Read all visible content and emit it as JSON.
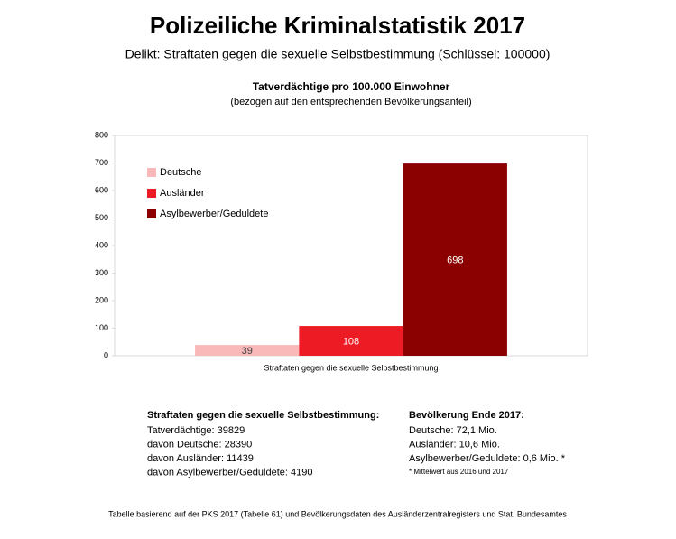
{
  "title": "Polizeiliche Kriminalstatistik 2017",
  "subtitle": "Delikt: Straftaten gegen die sexuelle Selbstbestimmung (Schlüssel: 100000)",
  "chart_data": {
    "type": "bar",
    "title": "Tatverdächtige pro 100.000 Einwohner",
    "subtitle": "(bezogen auf den entsprechenden Bevölkerungsanteil)",
    "categories": [
      "Straftaten gegen die sexuelle Selbstbestimmung"
    ],
    "series": [
      {
        "name": "Deutsche",
        "color": "#f9b9b9",
        "values": [
          39
        ]
      },
      {
        "name": "Ausländer",
        "color": "#ed1c24",
        "values": [
          108
        ]
      },
      {
        "name": "Asylbewerber/Geduldete",
        "color": "#8b0000",
        "values": [
          698
        ]
      }
    ],
    "ylim": [
      0,
      800
    ],
    "yticks": [
      0,
      100,
      200,
      300,
      400,
      500,
      600,
      700,
      800
    ],
    "legend": "upper left"
  },
  "notes": {
    "left": {
      "heading": "Straftaten gegen die sexuelle Selbstbestimmung:",
      "lines": [
        "Tatverdächtige: 39829",
        "davon Deutsche: 28390",
        "davon Ausländer: 11439",
        "davon Asylbewerber/Geduldete: 4190"
      ]
    },
    "right": {
      "heading": "Bevölkerung Ende 2017:",
      "lines": [
        "Deutsche: 72,1 Mio.",
        "Ausländer: 10,6 Mio.",
        "Asylbewerber/Geduldete: 0,6 Mio. *"
      ],
      "footnote": "* Mittelwert aus 2016 und 2017"
    }
  },
  "source": "Tabelle basierend auf der PKS 2017 (Tabelle 61) und Bevölkerungsdaten des Ausländerzentralregisters und Stat. Bundesamtes"
}
